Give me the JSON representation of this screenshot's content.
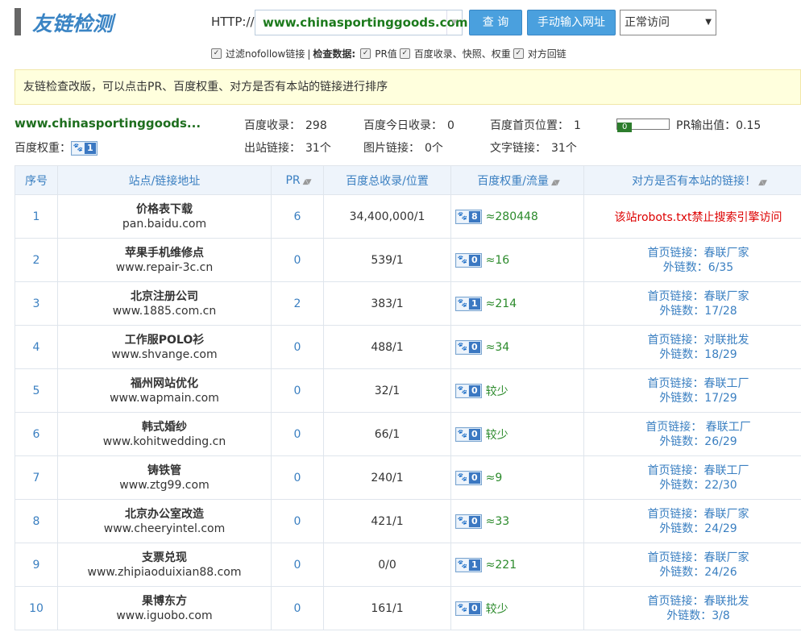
{
  "header": {
    "title": "友链检测",
    "http_label": "HTTP://",
    "url": "www.chinasportinggoods.com",
    "query_button": "查 询",
    "manual_button": "手动输入网址",
    "mode_select": "正常访问"
  },
  "options": {
    "filter": {
      "label": "过滤nofollow链接",
      "checked": true
    },
    "separator": "|",
    "check_data_label": "检查数据:",
    "items": [
      {
        "label": "PR值",
        "checked": true
      },
      {
        "label": "百度收录、快照、权重",
        "checked": true
      },
      {
        "label": "对方回链",
        "checked": true
      }
    ]
  },
  "notice": "友链检查改版，可以点击PR、百度权重、对方是否有本站的链接进行排序",
  "summary": {
    "site": "www.chinasportinggoods...",
    "weight_label": "百度权重：",
    "weight": "1",
    "row1": [
      {
        "label": "百度收录：",
        "value": "298"
      },
      {
        "label": "百度今日收录：",
        "value": "0"
      },
      {
        "label": "百度首页位置：",
        "value": "1"
      }
    ],
    "pr_bar": "0",
    "pr_output": {
      "label": "PR输出值：",
      "value": "0.15"
    },
    "row2": [
      {
        "label": "出站链接：",
        "value": "31个"
      },
      {
        "label": "图片链接：",
        "value": "0个"
      },
      {
        "label": "文字链接：",
        "value": "31个"
      }
    ]
  },
  "table": {
    "headers": [
      "序号",
      "站点/链接地址",
      "PR",
      "百度总收录/位置",
      "百度权重/流量",
      "对方是否有本站的链接！"
    ],
    "sortable": [
      false,
      false,
      true,
      false,
      true,
      true
    ],
    "rows": [
      {
        "index": "1",
        "name": "价格表下载",
        "domain": "pan.baidu.com",
        "pr": "6",
        "indexed": "34,400,000/1",
        "weight": "8",
        "traffic": "≈280448",
        "note": "该站robots.txt禁止搜索引擎访问"
      },
      {
        "index": "2",
        "name": "苹果手机维修点",
        "domain": "www.repair-3c.cn",
        "pr": "0",
        "indexed": "539/1",
        "weight": "0",
        "traffic": "≈16",
        "home_link": "首页链接：春联厂家",
        "outlinks": "外链数：6/35"
      },
      {
        "index": "3",
        "name": "北京注册公司",
        "domain": "www.1885.com.cn",
        "pr": "2",
        "indexed": "383/1",
        "weight": "1",
        "traffic": "≈214",
        "home_link": "首页链接：春联厂家",
        "outlinks": "外链数：17/28"
      },
      {
        "index": "4",
        "name": "工作服POLO衫",
        "domain": "www.shvange.com",
        "pr": "0",
        "indexed": "488/1",
        "weight": "0",
        "traffic": "≈34",
        "home_link": "首页链接：对联批发",
        "outlinks": "外链数：18/29"
      },
      {
        "index": "5",
        "name": "福州网站优化",
        "domain": "www.wapmain.com",
        "pr": "0",
        "indexed": "32/1",
        "weight": "0",
        "traffic": "较少",
        "home_link": "首页链接：春联工厂",
        "outlinks": "外链数：17/29"
      },
      {
        "index": "6",
        "name": "韩式婚纱",
        "domain": "www.kohitwedding.cn",
        "pr": "0",
        "indexed": "66/1",
        "weight": "0",
        "traffic": "较少",
        "home_link": "首页链接： 春联工厂",
        "outlinks": "外链数：26/29"
      },
      {
        "index": "7",
        "name": "铸铁管",
        "domain": "www.ztg99.com",
        "pr": "0",
        "indexed": "240/1",
        "weight": "0",
        "traffic": "≈9",
        "home_link": "首页链接：春联工厂",
        "outlinks": "外链数：22/30"
      },
      {
        "index": "8",
        "name": "北京办公室改造",
        "domain": "www.cheeryintel.com",
        "pr": "0",
        "indexed": "421/1",
        "weight": "0",
        "traffic": "≈33",
        "home_link": "首页链接：春联厂家",
        "outlinks": "外链数：24/29"
      },
      {
        "index": "9",
        "name": "支票兑现",
        "domain": "www.zhipiaoduixian88.com",
        "pr": "0",
        "indexed": "0/0",
        "weight": "1",
        "traffic": "≈221",
        "home_link": "首页链接：春联厂家",
        "outlinks": "外链数：24/26"
      },
      {
        "index": "10",
        "name": "果博东方",
        "domain": "www.iguobo.com",
        "pr": "0",
        "indexed": "161/1",
        "weight": "0",
        "traffic": "较少",
        "home_link": "首页链接：春联批发",
        "outlinks": "外链数：3/8"
      }
    ]
  }
}
